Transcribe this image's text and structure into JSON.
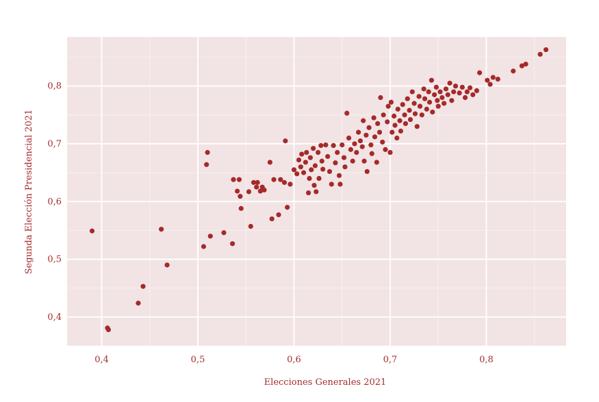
{
  "chart_data": {
    "type": "scatter",
    "title": "",
    "xlabel": "Elecciones Generales 2021",
    "ylabel": "Segunda Elección Presidencial 2021",
    "xlim": [
      0.364,
      0.883
    ],
    "ylim": [
      0.35,
      0.885
    ],
    "x_ticks": [
      0.4,
      0.5,
      0.6,
      0.7,
      0.8
    ],
    "x_tick_labels": [
      "0,4",
      "0,5",
      "0,6",
      "0,7",
      "0,8"
    ],
    "y_ticks": [
      0.4,
      0.5,
      0.6,
      0.7,
      0.8
    ],
    "y_tick_labels": [
      "0,4",
      "0,5",
      "0,6",
      "0,7",
      "0,8"
    ],
    "grid": true,
    "colors": {
      "point": "#a52a2a",
      "plot_bg": "#f2e4e4",
      "grid": "#ffffff",
      "text": "#a52a2a"
    },
    "points": [
      [
        0.39,
        0.549
      ],
      [
        0.406,
        0.381
      ],
      [
        0.407,
        0.378
      ],
      [
        0.438,
        0.424
      ],
      [
        0.443,
        0.453
      ],
      [
        0.462,
        0.552
      ],
      [
        0.468,
        0.49
      ],
      [
        0.506,
        0.522
      ],
      [
        0.509,
        0.664
      ],
      [
        0.51,
        0.685
      ],
      [
        0.513,
        0.54
      ],
      [
        0.527,
        0.546
      ],
      [
        0.536,
        0.527
      ],
      [
        0.537,
        0.638
      ],
      [
        0.541,
        0.618
      ],
      [
        0.543,
        0.638
      ],
      [
        0.544,
        0.609
      ],
      [
        0.545,
        0.588
      ],
      [
        0.553,
        0.617
      ],
      [
        0.555,
        0.557
      ],
      [
        0.558,
        0.633
      ],
      [
        0.561,
        0.625
      ],
      [
        0.562,
        0.633
      ],
      [
        0.565,
        0.618
      ],
      [
        0.567,
        0.625
      ],
      [
        0.569,
        0.62
      ],
      [
        0.575,
        0.668
      ],
      [
        0.577,
        0.57
      ],
      [
        0.579,
        0.638
      ],
      [
        0.584,
        0.577
      ],
      [
        0.586,
        0.638
      ],
      [
        0.59,
        0.633
      ],
      [
        0.591,
        0.705
      ],
      [
        0.593,
        0.59
      ],
      [
        0.596,
        0.63
      ],
      [
        0.6,
        0.655
      ],
      [
        0.603,
        0.648
      ],
      [
        0.605,
        0.672
      ],
      [
        0.607,
        0.66
      ],
      [
        0.608,
        0.682
      ],
      [
        0.61,
        0.65
      ],
      [
        0.612,
        0.668
      ],
      [
        0.613,
        0.685
      ],
      [
        0.615,
        0.615
      ],
      [
        0.616,
        0.64
      ],
      [
        0.617,
        0.676
      ],
      [
        0.618,
        0.655
      ],
      [
        0.62,
        0.692
      ],
      [
        0.621,
        0.628
      ],
      [
        0.622,
        0.662
      ],
      [
        0.623,
        0.617
      ],
      [
        0.625,
        0.685
      ],
      [
        0.626,
        0.64
      ],
      [
        0.628,
        0.697
      ],
      [
        0.629,
        0.67
      ],
      [
        0.63,
        0.656
      ],
      [
        0.633,
        0.698
      ],
      [
        0.635,
        0.678
      ],
      [
        0.637,
        0.652
      ],
      [
        0.639,
        0.63
      ],
      [
        0.641,
        0.697
      ],
      [
        0.643,
        0.667
      ],
      [
        0.645,
        0.685
      ],
      [
        0.647,
        0.645
      ],
      [
        0.648,
        0.63
      ],
      [
        0.65,
        0.698
      ],
      [
        0.652,
        0.676
      ],
      [
        0.653,
        0.66
      ],
      [
        0.655,
        0.753
      ],
      [
        0.657,
        0.71
      ],
      [
        0.659,
        0.69
      ],
      [
        0.661,
        0.67
      ],
      [
        0.663,
        0.7
      ],
      [
        0.665,
        0.685
      ],
      [
        0.667,
        0.72
      ],
      [
        0.669,
        0.705
      ],
      [
        0.671,
        0.695
      ],
      [
        0.672,
        0.74
      ],
      [
        0.673,
        0.67
      ],
      [
        0.675,
        0.715
      ],
      [
        0.676,
        0.652
      ],
      [
        0.678,
        0.728
      ],
      [
        0.68,
        0.698
      ],
      [
        0.681,
        0.683
      ],
      [
        0.683,
        0.745
      ],
      [
        0.684,
        0.712
      ],
      [
        0.686,
        0.668
      ],
      [
        0.687,
        0.735
      ],
      [
        0.689,
        0.72
      ],
      [
        0.69,
        0.78
      ],
      [
        0.692,
        0.703
      ],
      [
        0.693,
        0.75
      ],
      [
        0.695,
        0.69
      ],
      [
        0.697,
        0.738
      ],
      [
        0.698,
        0.765
      ],
      [
        0.7,
        0.685
      ],
      [
        0.701,
        0.772
      ],
      [
        0.702,
        0.72
      ],
      [
        0.704,
        0.748
      ],
      [
        0.705,
        0.732
      ],
      [
        0.707,
        0.71
      ],
      [
        0.708,
        0.76
      ],
      [
        0.71,
        0.74
      ],
      [
        0.711,
        0.722
      ],
      [
        0.713,
        0.768
      ],
      [
        0.715,
        0.75
      ],
      [
        0.716,
        0.735
      ],
      [
        0.718,
        0.778
      ],
      [
        0.72,
        0.758
      ],
      [
        0.721,
        0.742
      ],
      [
        0.723,
        0.79
      ],
      [
        0.725,
        0.77
      ],
      [
        0.726,
        0.752
      ],
      [
        0.728,
        0.73
      ],
      [
        0.73,
        0.782
      ],
      [
        0.731,
        0.765
      ],
      [
        0.733,
        0.75
      ],
      [
        0.735,
        0.795
      ],
      [
        0.736,
        0.778
      ],
      [
        0.738,
        0.76
      ],
      [
        0.74,
        0.79
      ],
      [
        0.741,
        0.772
      ],
      [
        0.743,
        0.81
      ],
      [
        0.744,
        0.755
      ],
      [
        0.746,
        0.785
      ],
      [
        0.748,
        0.798
      ],
      [
        0.749,
        0.775
      ],
      [
        0.75,
        0.765
      ],
      [
        0.752,
        0.79
      ],
      [
        0.754,
        0.78
      ],
      [
        0.756,
        0.77
      ],
      [
        0.758,
        0.795
      ],
      [
        0.76,
        0.785
      ],
      [
        0.762,
        0.805
      ],
      [
        0.764,
        0.775
      ],
      [
        0.766,
        0.79
      ],
      [
        0.768,
        0.8
      ],
      [
        0.772,
        0.788
      ],
      [
        0.775,
        0.798
      ],
      [
        0.778,
        0.78
      ],
      [
        0.78,
        0.79
      ],
      [
        0.783,
        0.797
      ],
      [
        0.786,
        0.785
      ],
      [
        0.79,
        0.792
      ],
      [
        0.793,
        0.823
      ],
      [
        0.801,
        0.81
      ],
      [
        0.804,
        0.803
      ],
      [
        0.807,
        0.815
      ],
      [
        0.812,
        0.812
      ],
      [
        0.828,
        0.826
      ],
      [
        0.837,
        0.835
      ],
      [
        0.841,
        0.838
      ],
      [
        0.856,
        0.855
      ],
      [
        0.862,
        0.863
      ]
    ]
  }
}
